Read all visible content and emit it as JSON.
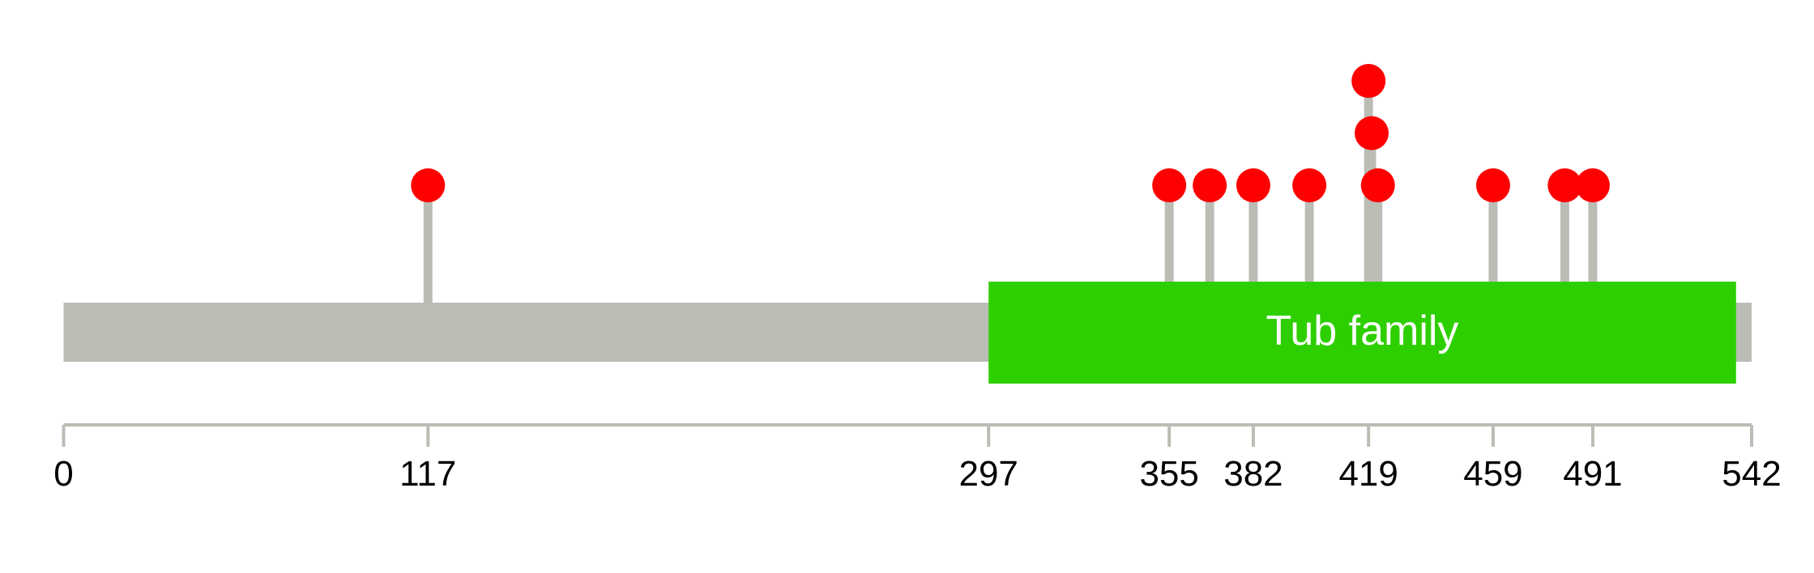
{
  "protein_length": 542,
  "domains": [
    {
      "name": "Tub family",
      "start": 297,
      "end": 537,
      "color": "#2ecf00"
    }
  ],
  "mutations": [
    {
      "position": 117,
      "count": 1
    },
    {
      "position": 355,
      "count": 1
    },
    {
      "position": 368,
      "count": 1
    },
    {
      "position": 382,
      "count": 1
    },
    {
      "position": 400,
      "count": 1
    },
    {
      "position": 419,
      "count": 3
    },
    {
      "position": 420,
      "count": 2
    },
    {
      "position": 422,
      "count": 1
    },
    {
      "position": 459,
      "count": 1
    },
    {
      "position": 482,
      "count": 1
    },
    {
      "position": 491,
      "count": 1
    }
  ],
  "axis_ticks": [
    0,
    117,
    297,
    355,
    382,
    419,
    459,
    491,
    542
  ],
  "colors": {
    "backbone": "#bbbdb5",
    "stem": "#bbbdb5",
    "mutation": "#ff0000",
    "axis": "#bbbdb5",
    "domain_label": "#ffffff"
  }
}
